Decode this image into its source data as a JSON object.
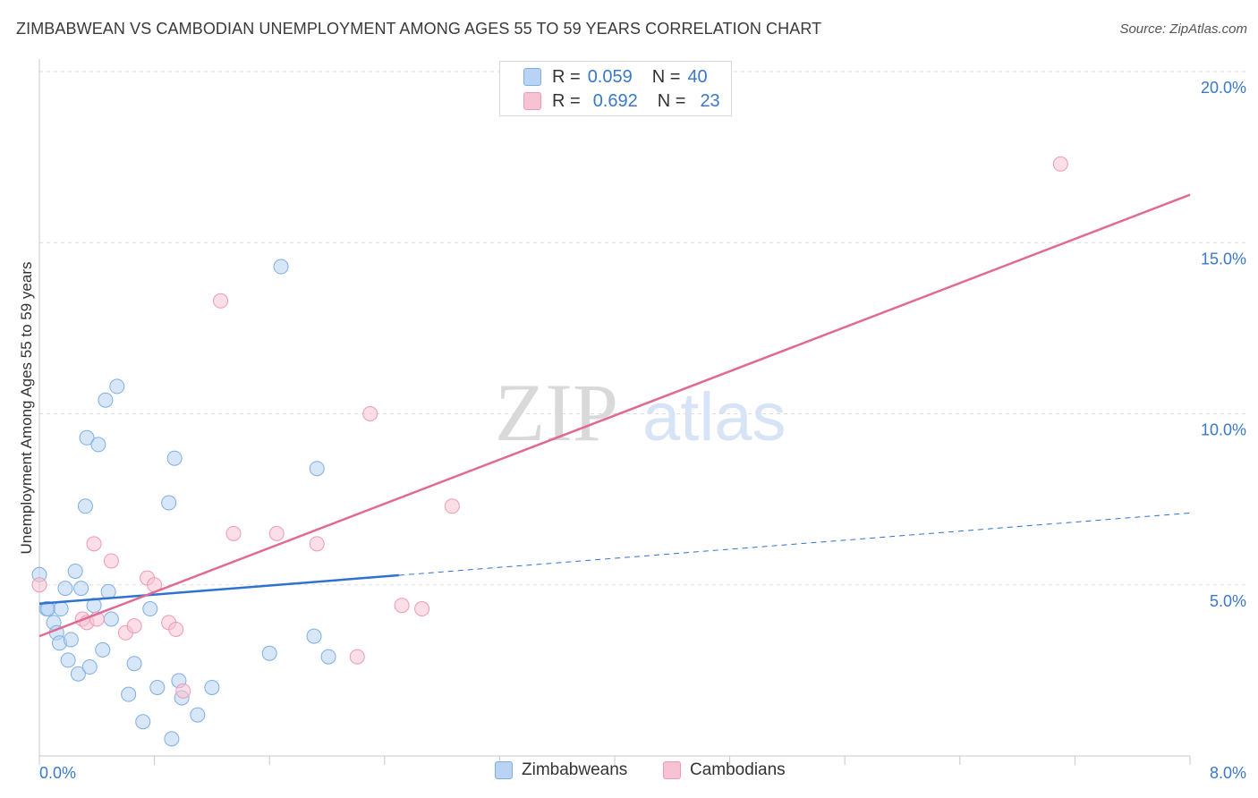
{
  "title": "ZIMBABWEAN VS CAMBODIAN UNEMPLOYMENT AMONG AGES 55 TO 59 YEARS CORRELATION CHART",
  "source": "Source: ZipAtlas.com",
  "watermark": {
    "zip": "ZIP",
    "atlas": "atlas"
  },
  "legend": {
    "zimbabweans": {
      "r_label": "R =",
      "r_value": "0.059",
      "n_label": "N =",
      "n_value": "40"
    },
    "cambodians": {
      "r_label": "R =",
      "r_value": "0.692",
      "n_label": "N =",
      "n_value": "23"
    }
  },
  "bottom_legend": {
    "zimbabweans": "Zimbabweans",
    "cambodians": "Cambodians"
  },
  "colors": {
    "blue_fill": "#b8d3f3",
    "blue_stroke": "#7eaee3",
    "blue_line": "#2f72cf",
    "pink_fill": "#f7c3d2",
    "pink_stroke": "#ee9ab4",
    "pink_line": "#e06a93",
    "axis_text": "#3a78c9"
  },
  "chart_data": {
    "type": "scatter",
    "title": "ZIMBABWEAN VS CAMBODIAN UNEMPLOYMENT AMONG AGES 55 TO 59 YEARS CORRELATION CHART",
    "xlabel": "",
    "ylabel": "Unemployment Among Ages 55 to 59 years",
    "xlim": [
      0,
      8
    ],
    "ylim": [
      0,
      20
    ],
    "x_tick_labels": [
      "0.0%",
      "8.0%"
    ],
    "y_tick_labels": [
      "5.0%",
      "10.0%",
      "15.0%",
      "20.0%"
    ],
    "y_ticks": [
      5,
      10,
      15,
      20
    ],
    "grid": true,
    "series": [
      {
        "name": "Zimbabweans",
        "points": [
          [
            0.0,
            5.3
          ],
          [
            0.05,
            4.3
          ],
          [
            0.06,
            4.3
          ],
          [
            0.1,
            3.9
          ],
          [
            0.12,
            3.6
          ],
          [
            0.14,
            3.3
          ],
          [
            0.15,
            4.3
          ],
          [
            0.18,
            4.9
          ],
          [
            0.2,
            2.8
          ],
          [
            0.22,
            3.4
          ],
          [
            0.25,
            5.4
          ],
          [
            0.27,
            2.4
          ],
          [
            0.29,
            4.9
          ],
          [
            0.32,
            7.3
          ],
          [
            0.33,
            9.3
          ],
          [
            0.35,
            2.6
          ],
          [
            0.38,
            4.4
          ],
          [
            0.41,
            9.1
          ],
          [
            0.44,
            3.1
          ],
          [
            0.46,
            10.4
          ],
          [
            0.48,
            4.8
          ],
          [
            0.5,
            4.0
          ],
          [
            0.54,
            10.8
          ],
          [
            0.62,
            1.8
          ],
          [
            0.66,
            2.7
          ],
          [
            0.72,
            1.0
          ],
          [
            0.77,
            4.3
          ],
          [
            0.82,
            2.0
          ],
          [
            0.9,
            7.4
          ],
          [
            0.92,
            0.5
          ],
          [
            0.94,
            8.7
          ],
          [
            0.97,
            2.2
          ],
          [
            0.99,
            1.7
          ],
          [
            1.1,
            1.2
          ],
          [
            1.2,
            2.0
          ],
          [
            1.6,
            3.0
          ],
          [
            1.68,
            14.3
          ],
          [
            1.91,
            3.5
          ],
          [
            1.93,
            8.4
          ],
          [
            2.01,
            2.9
          ]
        ],
        "trend": {
          "x": [
            0.0,
            2.5
          ],
          "y": [
            4.45,
            5.28
          ],
          "extended_to": {
            "x": 8.0,
            "y": 7.1
          }
        }
      },
      {
        "name": "Cambodians",
        "points": [
          [
            0.0,
            5.0
          ],
          [
            0.3,
            4.0
          ],
          [
            0.33,
            3.9
          ],
          [
            0.4,
            4.0
          ],
          [
            0.38,
            6.2
          ],
          [
            0.5,
            5.7
          ],
          [
            0.6,
            3.6
          ],
          [
            0.66,
            3.8
          ],
          [
            0.75,
            5.2
          ],
          [
            0.8,
            5.0
          ],
          [
            0.9,
            3.9
          ],
          [
            0.95,
            3.7
          ],
          [
            1.0,
            1.9
          ],
          [
            1.26,
            13.3
          ],
          [
            1.35,
            6.5
          ],
          [
            1.65,
            6.5
          ],
          [
            1.93,
            6.2
          ],
          [
            2.21,
            2.9
          ],
          [
            2.3,
            10.0
          ],
          [
            2.52,
            4.4
          ],
          [
            2.66,
            4.3
          ],
          [
            2.87,
            7.3
          ],
          [
            7.1,
            17.3
          ]
        ],
        "trend": {
          "x": [
            0.0,
            8.0
          ],
          "y": [
            3.5,
            16.4
          ]
        }
      }
    ]
  }
}
